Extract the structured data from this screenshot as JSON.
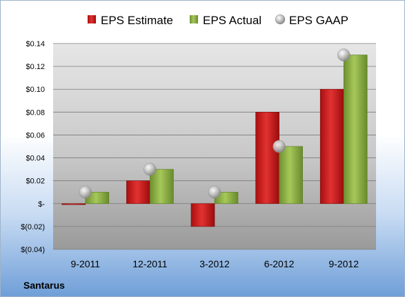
{
  "chart_data": {
    "type": "bar",
    "categories": [
      "9-2011",
      "12-2011",
      "3-2012",
      "6-2012",
      "9-2012"
    ],
    "series": [
      {
        "name": "EPS Estimate",
        "values": [
          0.0,
          0.02,
          -0.02,
          0.08,
          0.1
        ],
        "color": "#cc1f1f",
        "kind": "bar"
      },
      {
        "name": "EPS Actual",
        "values": [
          0.01,
          0.03,
          0.01,
          0.05,
          0.13
        ],
        "color": "#8db042",
        "kind": "bar"
      },
      {
        "name": "EPS GAAP",
        "values": [
          0.01,
          0.03,
          0.01,
          0.05,
          0.13
        ],
        "color": "#a8a8a8",
        "kind": "marker"
      }
    ],
    "ylim": [
      -0.04,
      0.14
    ],
    "yticks": [
      0.14,
      0.12,
      0.1,
      0.08,
      0.06,
      0.04,
      0.02,
      0,
      -0.02,
      -0.04
    ],
    "ytick_labels": [
      "$0.14",
      "$0.12",
      "$0.10",
      "$0.08",
      "$0.06",
      "$0.04",
      "$0.02",
      "$-",
      "$(0.02)",
      "$(0.04)"
    ],
    "grid": true,
    "legend": "top",
    "title": "",
    "xlabel": "",
    "ylabel": "",
    "footer_label": "Santarus"
  }
}
